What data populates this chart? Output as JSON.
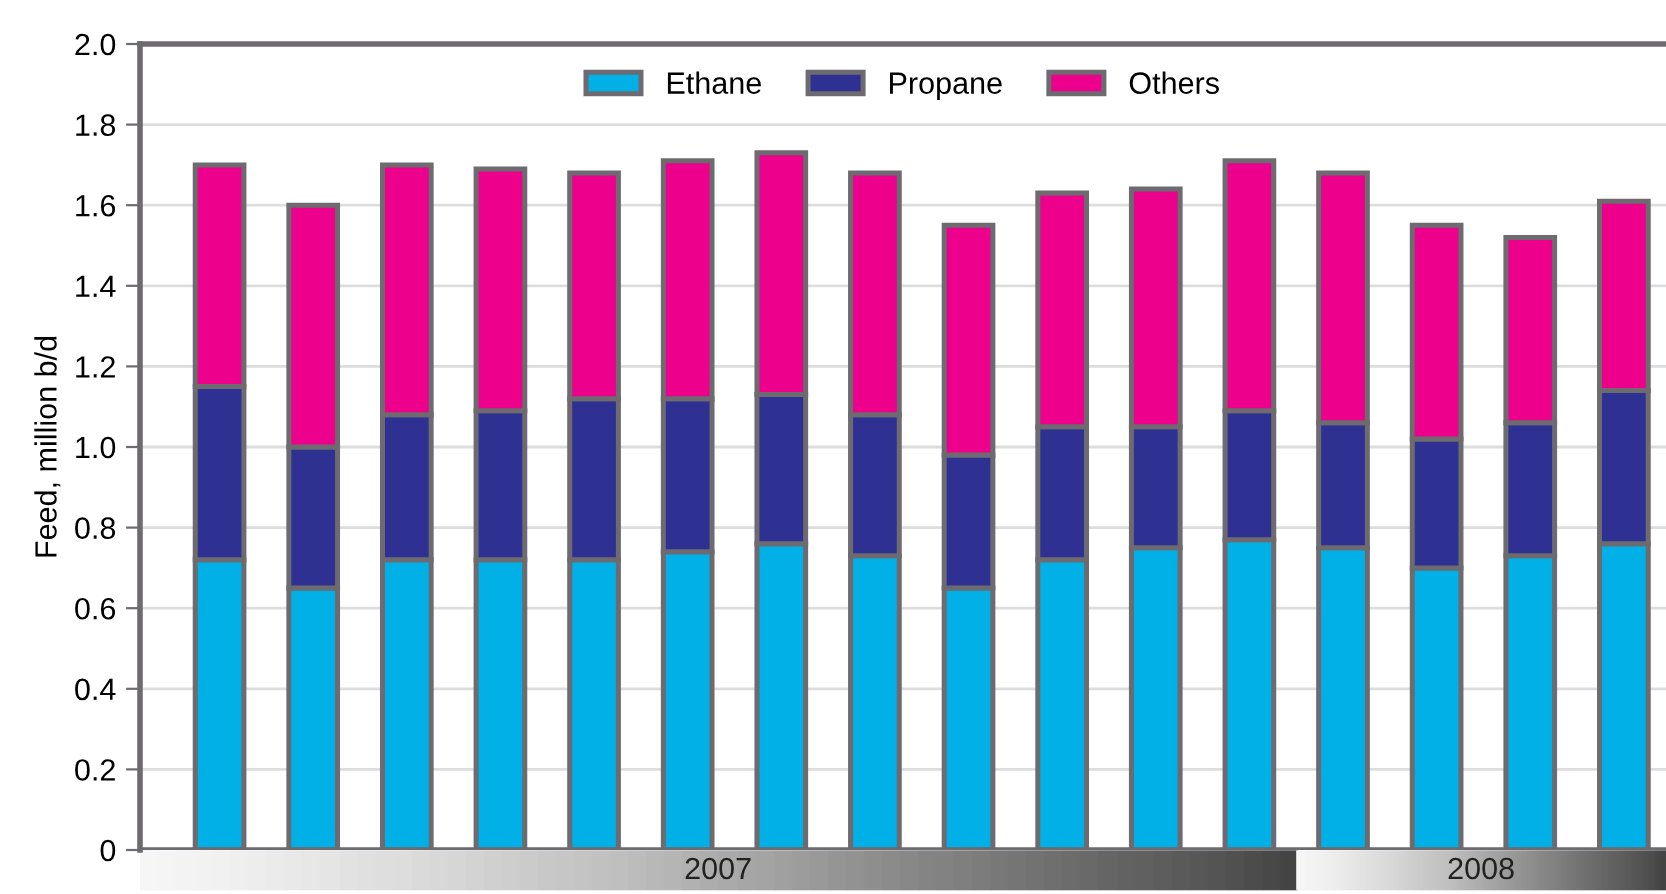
{
  "chart_data": {
    "type": "bar",
    "stacked": true,
    "ylabel": "Feed, million b/d",
    "categories": [
      null,
      null,
      null,
      null,
      null,
      null,
      null,
      null,
      null,
      null,
      null,
      null,
      null,
      null,
      null,
      null
    ],
    "series": [
      {
        "name": "Ethane",
        "color": "#00b0e6",
        "values": [
          0.72,
          0.65,
          0.72,
          0.72,
          0.72,
          0.74,
          0.76,
          0.73,
          0.65,
          0.72,
          0.75,
          0.77,
          0.75,
          0.7,
          0.73,
          0.76
        ]
      },
      {
        "name": "Propane",
        "color": "#2e3192",
        "values": [
          0.43,
          0.35,
          0.36,
          0.37,
          0.4,
          0.38,
          0.37,
          0.35,
          0.33,
          0.33,
          0.3,
          0.32,
          0.31,
          0.32,
          0.33,
          0.38
        ]
      },
      {
        "name": "Others",
        "color": "#ec008c",
        "values": [
          0.55,
          0.6,
          0.62,
          0.6,
          0.56,
          0.59,
          0.6,
          0.6,
          0.57,
          0.58,
          0.59,
          0.62,
          0.62,
          0.53,
          0.46,
          0.47
        ]
      }
    ],
    "ylim": [
      0,
      2.0
    ],
    "yticks": [
      0,
      {
        "value": 0.2,
        "label": "0.2"
      },
      {
        "value": 0.4,
        "label": "0.4"
      },
      {
        "value": 0.6,
        "label": "0.6"
      },
      {
        "value": 0.8,
        "label": "0.8"
      },
      {
        "value": 1.0,
        "label": "1.0"
      },
      {
        "value": 1.2,
        "label": "1.2"
      },
      {
        "value": 1.4,
        "label": "1.4"
      },
      {
        "value": 1.6,
        "label": "1.6"
      },
      {
        "value": 1.8,
        "label": "1.8"
      },
      {
        "value": 2.0,
        "label": "2.0"
      }
    ],
    "grid": "y",
    "legend": "top",
    "annotations": [
      "2007",
      "2008"
    ]
  }
}
